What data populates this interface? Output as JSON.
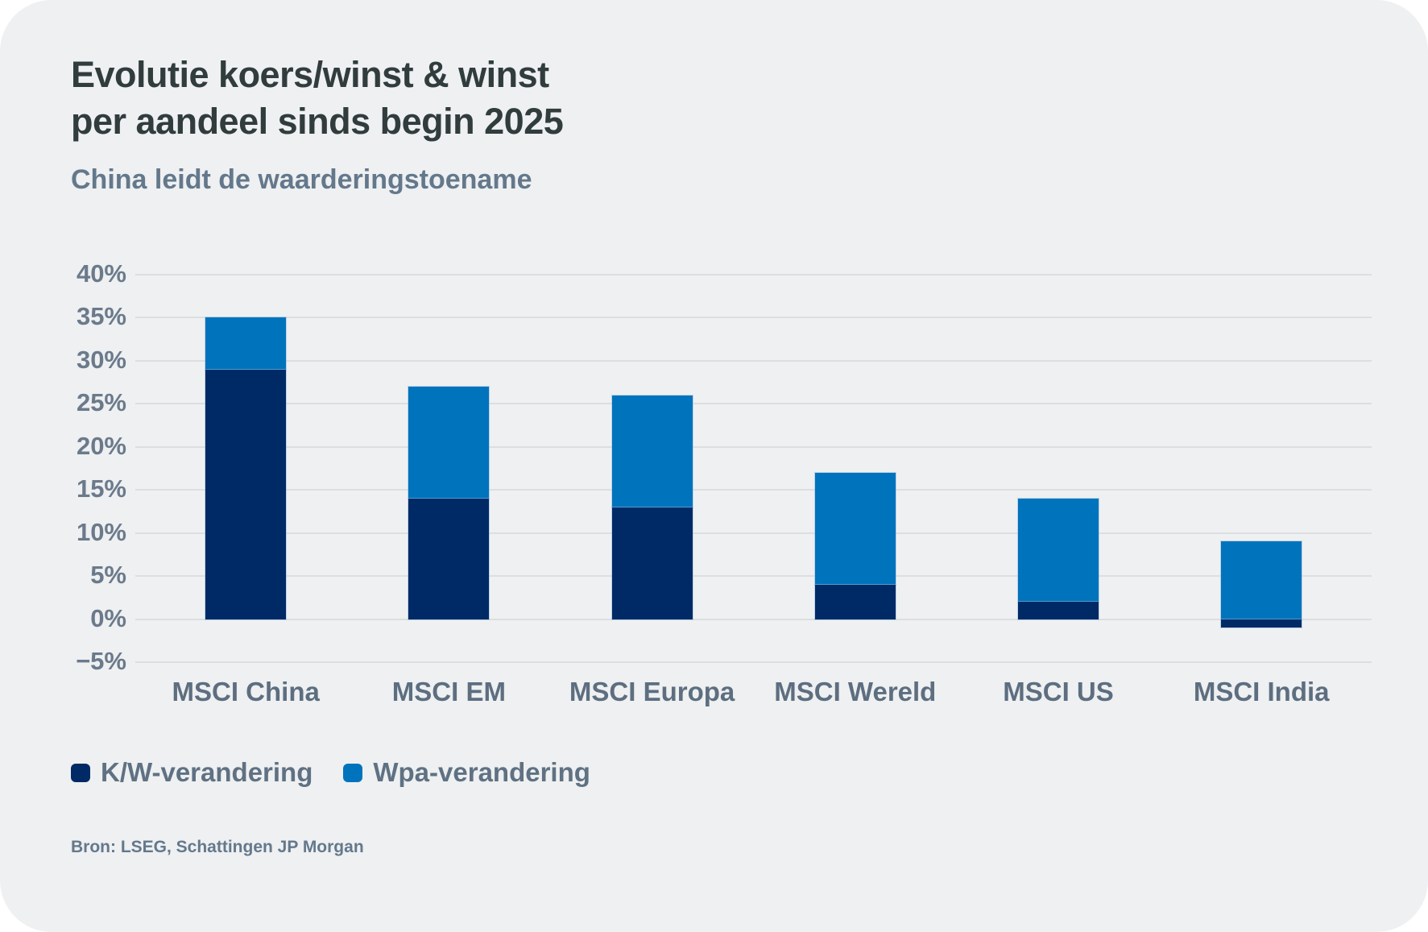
{
  "header": {
    "title_line1": "Evolutie koers/winst & winst",
    "title_line2": "per aandeel sinds begin 2025",
    "subtitle": "China leidt de waarderingstoename"
  },
  "chart_data": {
    "type": "bar",
    "stacked": true,
    "categories": [
      "MSCI China",
      "MSCI EM",
      "MSCI Europa",
      "MSCI Wereld",
      "MSCI US",
      "MSCI India"
    ],
    "series": [
      {
        "name": "K/W-verandering",
        "color": "#002a66",
        "values": [
          29,
          14,
          13,
          4,
          2,
          -1
        ]
      },
      {
        "name": "Wpa-verandering",
        "color": "#0073bd",
        "values": [
          6,
          13,
          13,
          13,
          12,
          9
        ]
      }
    ],
    "totals": [
      35,
      27,
      26,
      17,
      14,
      8
    ],
    "ylim": [
      -5,
      40
    ],
    "y_ticks": [
      {
        "value": 40,
        "label": "40%"
      },
      {
        "value": 35,
        "label": "35%"
      },
      {
        "value": 30,
        "label": "30%"
      },
      {
        "value": 25,
        "label": "25%"
      },
      {
        "value": 20,
        "label": "20%"
      },
      {
        "value": 15,
        "label": "15%"
      },
      {
        "value": 10,
        "label": "10%"
      },
      {
        "value": 5,
        "label": "5%"
      },
      {
        "value": 0,
        "label": "0%"
      },
      {
        "value": -5,
        "label": "−5%"
      }
    ],
    "grid": true,
    "legend_position": "bottom-left"
  },
  "source": {
    "text": "Bron: LSEG, Schattingen JP Morgan"
  },
  "colors": {
    "card_background": "#eef0f1",
    "title": "#313c3d",
    "subtitle": "#64788c",
    "axis_text": "#6b7a8b",
    "gridline": "#dcdee0",
    "kw_navy": "#002a66",
    "wpa_blue": "#0073bd"
  }
}
